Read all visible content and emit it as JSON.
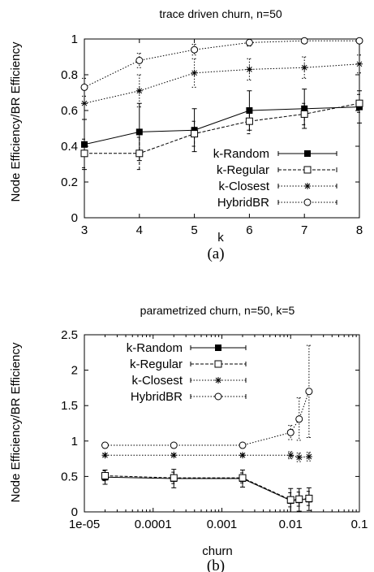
{
  "chart_data": [
    {
      "type": "line",
      "title": "trace driven churn, n=50",
      "xlabel": "k",
      "ylabel": "Node Efficiency/BR Efficiency",
      "caption": "(a)",
      "x": [
        3,
        4,
        5,
        6,
        7,
        8
      ],
      "xlim": [
        3,
        8
      ],
      "ylim": [
        0,
        1
      ],
      "xticks": [
        "3",
        "4",
        "5",
        "6",
        "7",
        "8"
      ],
      "yticks": [
        "0",
        "0.2",
        "0.4",
        "0.6",
        "0.8",
        "1"
      ],
      "legend_position": "bottom-right",
      "grid": false,
      "series": [
        {
          "name": "k-Random",
          "marker": "filled-square",
          "dash": "solid",
          "values": [
            0.41,
            0.48,
            0.49,
            0.6,
            0.61,
            0.62
          ],
          "err": [
            0.14,
            0.16,
            0.12,
            0.11,
            0.11,
            0.09
          ]
        },
        {
          "name": "k-Regular",
          "marker": "open-square",
          "dash": "dashed",
          "values": [
            0.36,
            0.36,
            0.47,
            0.54,
            0.58,
            0.64
          ],
          "err": [
            0.08,
            0.09,
            0.07,
            0.07,
            0.06,
            0.05
          ]
        },
        {
          "name": "k-Closest",
          "marker": "star",
          "dash": "dotted",
          "values": [
            0.64,
            0.71,
            0.81,
            0.83,
            0.84,
            0.86
          ],
          "err": [
            0.09,
            0.09,
            0.08,
            0.06,
            0.06,
            0.05
          ]
        },
        {
          "name": "HybridBR",
          "marker": "open-circle",
          "dash": "dotted",
          "values": [
            0.73,
            0.88,
            0.94,
            0.98,
            0.99,
            0.99
          ],
          "err": [
            0.05,
            0.04,
            0.03,
            0.02,
            0.01,
            0.01
          ]
        }
      ]
    },
    {
      "type": "line",
      "title": "parametrized churn, n=50, k=5",
      "xlabel": "churn",
      "ylabel": "Node Efficiency/BR Efficiency",
      "caption": "(b)",
      "x_scale": "log",
      "xlim": [
        1e-05,
        0.1
      ],
      "ylim": [
        0,
        2.5
      ],
      "xticks": [
        "1e-05",
        "0.0001",
        "0.001",
        "0.01",
        "0.1"
      ],
      "yticks": [
        "0",
        "0.5",
        "1",
        "1.5",
        "2",
        "2.5"
      ],
      "legend_position": "top-left",
      "grid": false,
      "x": [
        2e-05,
        0.0002,
        0.002,
        0.01,
        0.0133,
        0.0185
      ],
      "series": [
        {
          "name": "k-Random",
          "marker": "filled-square",
          "dash": "solid",
          "values": [
            0.49,
            0.47,
            0.47,
            0.16,
            0.17,
            0.18
          ],
          "err": [
            0.1,
            0.13,
            0.12,
            0.17,
            0.16,
            0.16
          ]
        },
        {
          "name": "k-Regular",
          "marker": "open-square",
          "dash": "dashed",
          "values": [
            0.51,
            0.48,
            0.48,
            0.17,
            0.18,
            0.19
          ],
          "err": [
            0.07,
            0.08,
            0.07,
            0.1,
            0.1,
            0.1
          ]
        },
        {
          "name": "k-Closest",
          "marker": "star",
          "dash": "dotted",
          "values": [
            0.8,
            0.8,
            0.8,
            0.8,
            0.77,
            0.78
          ],
          "err": [
            0.02,
            0.02,
            0.02,
            0.05,
            0.06,
            0.06
          ]
        },
        {
          "name": "HybridBR",
          "marker": "open-circle",
          "dash": "dotted",
          "values": [
            0.94,
            0.94,
            0.94,
            1.12,
            1.31,
            1.7
          ],
          "err": [
            0.01,
            0.01,
            0.01,
            0.1,
            0.3,
            0.65
          ]
        }
      ]
    }
  ]
}
